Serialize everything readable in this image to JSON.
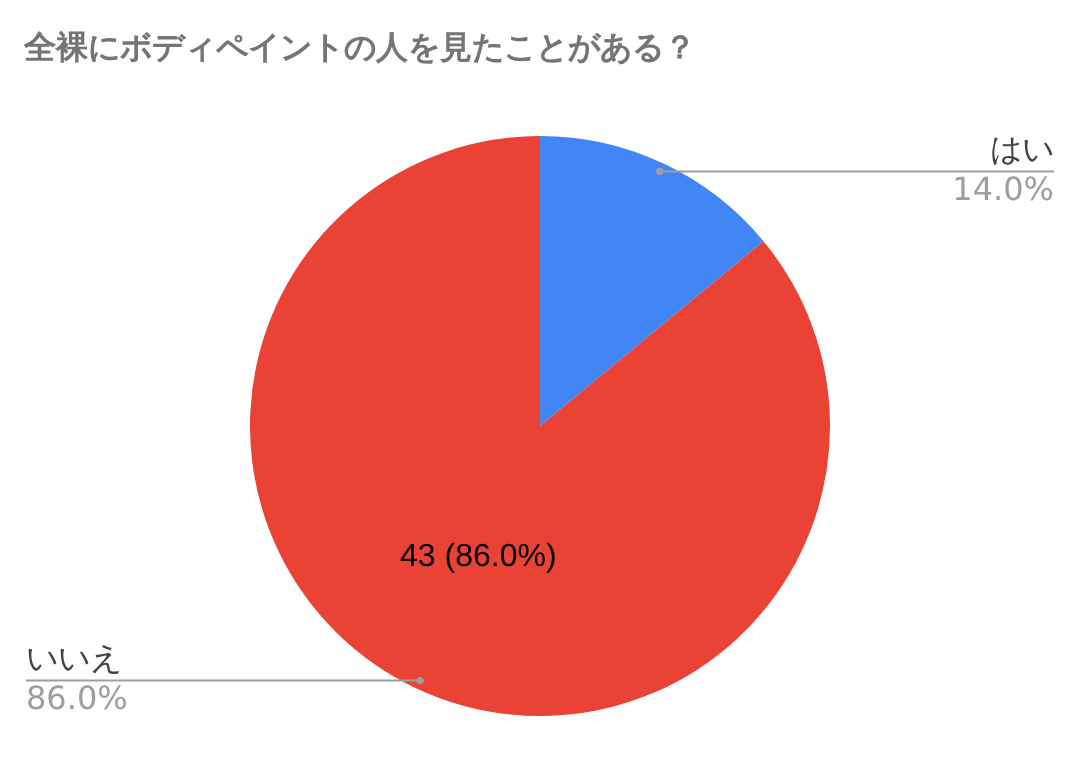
{
  "chart_data": {
    "type": "pie",
    "title": "全裸にボディペイントの人を見たことがある？",
    "categories": [
      "はい",
      "いいえ"
    ],
    "values": [
      7,
      43
    ],
    "colors": [
      "#4285f4",
      "#ea4335"
    ],
    "value_labels": [
      null,
      "43 (86.0%)"
    ],
    "annotations": [
      "14.0%",
      "86.0%"
    ],
    "legend": false
  }
}
